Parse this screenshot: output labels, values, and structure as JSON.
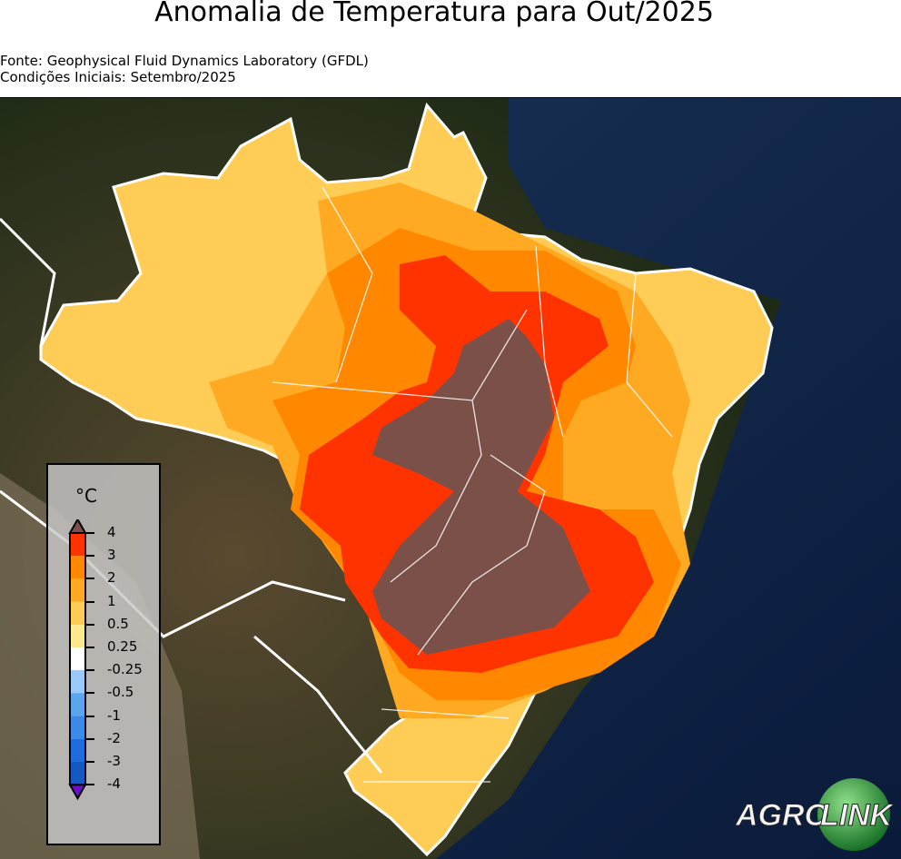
{
  "title": "Anomalia de Temperatura para Out/2025",
  "source": "Fonte: Geophysical Fluid Dynamics Laboratory (GFDL)",
  "initial_conditions": "Condições Iniciais: Setembro/2025",
  "legend": {
    "unit": "°C",
    "ticks": [
      "4",
      "3",
      "2",
      "1",
      "0.5",
      "0.25",
      "-0.25",
      "-0.5",
      "-1",
      "-2",
      "-3",
      "-4"
    ],
    "colors": [
      "#7a5048",
      "#ff3300",
      "#ff8800",
      "#ffaa22",
      "#ffcc55",
      "#ffe98f",
      "#ffffff",
      "#9cc9fb",
      "#5aa7f0",
      "#3a8ae6",
      "#1f6ddc",
      "#1458c2",
      "#6a10c8"
    ]
  },
  "logo": {
    "text_left": "AGRO",
    "text_right": "LINK"
  }
}
